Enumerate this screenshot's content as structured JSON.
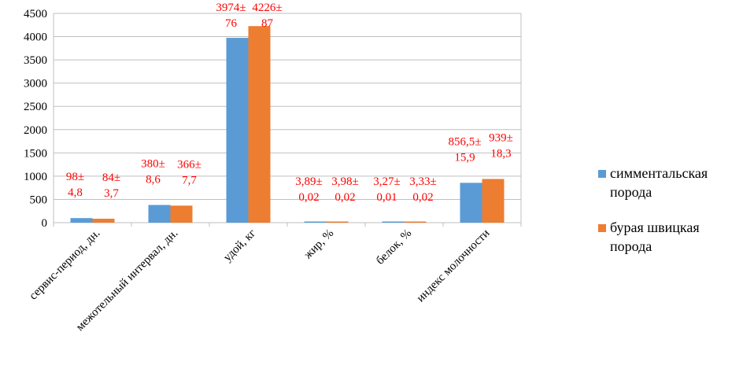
{
  "chart_data": {
    "type": "bar",
    "categories": [
      "сервис-период, дн.",
      "межотельный интервал, дн.",
      "удой, кг",
      "жир, %",
      "белок, %",
      "индекс молочности"
    ],
    "series": [
      {
        "name": "симментальская порода",
        "values": [
          98,
          380,
          3974,
          3.89,
          3.27,
          856.5
        ],
        "labels": [
          [
            "98±",
            "4,8"
          ],
          [
            "380±",
            "8,6"
          ],
          [
            "3974±",
            "76"
          ],
          [
            "3,89±",
            "0,02"
          ],
          [
            "3,27±",
            "0,01"
          ],
          [
            "856,5±",
            "15,9"
          ]
        ],
        "legend_lines": [
          "симментальская",
          "порода"
        ]
      },
      {
        "name": "бурая швицкая порода",
        "values": [
          84,
          366,
          4226,
          3.98,
          3.33,
          939
        ],
        "labels": [
          [
            "84±",
            "3,7"
          ],
          [
            "366±",
            "7,7"
          ],
          [
            "4226±",
            "87"
          ],
          [
            "3,98±",
            "0,02"
          ],
          [
            "3,33±",
            "0,02"
          ],
          [
            "939±",
            "18,3"
          ]
        ],
        "legend_lines": [
          "бурая швицкая",
          "порода"
        ]
      }
    ],
    "yticks": [
      "0",
      "500",
      "1000",
      "1500",
      "2000",
      "2500",
      "3000",
      "3500",
      "4000",
      "4500"
    ],
    "ylim": [
      0,
      4500
    ],
    "grid": true,
    "legend_position": "right",
    "colors": {
      "series1": "#5b9bd5",
      "series2": "#ed7d31",
      "data_labels": "#ff0000",
      "grid": "#bfbfbf",
      "axis": "#000000"
    }
  }
}
